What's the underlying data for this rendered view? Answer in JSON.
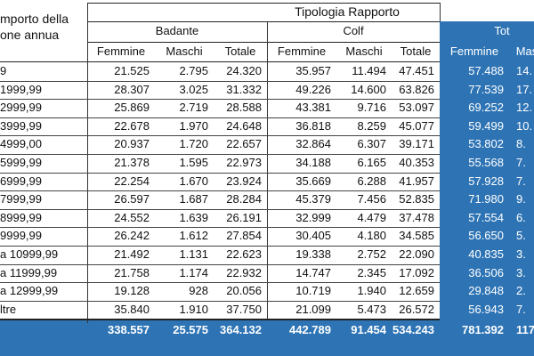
{
  "colors": {
    "accent": "#2e74b5",
    "accent_text": "#ffffff"
  },
  "header": {
    "group_title": "Tipologia Rapporto",
    "label_line1": "mporto della",
    "label_line2": "one annua",
    "badante": "Badante",
    "colf": "Colf",
    "totale_group": "Tot",
    "sub_badante": [
      "Femmine",
      "Maschi",
      "Totale"
    ],
    "sub_colf": [
      "Femmine",
      "Maschi",
      "Totale"
    ],
    "sub_tot": [
      "Femmine",
      "Mas"
    ]
  },
  "rows": [
    {
      "label": "9",
      "values": [
        "21.525",
        "2.795",
        "24.320",
        "35.957",
        "11.494",
        "47.451",
        "57.488",
        "14."
      ]
    },
    {
      "label": "1999,99",
      "values": [
        "28.307",
        "3.025",
        "31.332",
        "49.226",
        "14.600",
        "63.826",
        "77.539",
        "17."
      ]
    },
    {
      "label": "2999,99",
      "values": [
        "25.869",
        "2.719",
        "28.588",
        "43.381",
        "9.716",
        "53.097",
        "69.252",
        "12."
      ]
    },
    {
      "label": "3999,99",
      "values": [
        "22.678",
        "1.970",
        "24.648",
        "36.818",
        "8.259",
        "45.077",
        "59.499",
        "10."
      ]
    },
    {
      "label": "4999,00",
      "values": [
        "20.937",
        "1.720",
        "22.657",
        "32.864",
        "6.307",
        "39.171",
        "53.802",
        "8."
      ]
    },
    {
      "label": "5999,99",
      "values": [
        "21.378",
        "1.595",
        "22.973",
        "34.188",
        "6.165",
        "40.353",
        "55.568",
        "7."
      ]
    },
    {
      "label": "6999,99",
      "values": [
        "22.254",
        "1.670",
        "23.924",
        "35.669",
        "6.288",
        "41.957",
        "57.928",
        "7."
      ]
    },
    {
      "label": "7999,99",
      "values": [
        "26.597",
        "1.687",
        "28.284",
        "45.379",
        "7.456",
        "52.835",
        "71.980",
        "9."
      ]
    },
    {
      "label": "8999,99",
      "values": [
        "24.552",
        "1.639",
        "26.191",
        "32.999",
        "4.479",
        "37.478",
        "57.554",
        "6."
      ]
    },
    {
      "label": "9999,99",
      "values": [
        "26.242",
        "1.612",
        "27.854",
        "30.405",
        "4.180",
        "34.585",
        "56.650",
        "5."
      ]
    },
    {
      "label": "a 10999,99",
      "values": [
        "21.492",
        "1.131",
        "22.623",
        "19.338",
        "2.752",
        "22.090",
        "40.835",
        "3."
      ]
    },
    {
      "label": "a 11999,99",
      "values": [
        "21.758",
        "1.174",
        "22.932",
        "14.747",
        "2.345",
        "17.092",
        "36.506",
        "3."
      ]
    },
    {
      "label": "a 12999,99",
      "values": [
        "19.128",
        "928",
        "20.056",
        "10.719",
        "1.940",
        "12.659",
        "29.848",
        "2."
      ]
    },
    {
      "label": "ltre",
      "values": [
        "35.840",
        "1.910",
        "37.750",
        "21.099",
        "5.473",
        "26.572",
        "56.943",
        "7."
      ]
    }
  ],
  "total_row": {
    "values": [
      "338.557",
      "25.575",
      "364.132",
      "442.789",
      "91.454",
      "534.243",
      "781.392",
      "117."
    ]
  }
}
